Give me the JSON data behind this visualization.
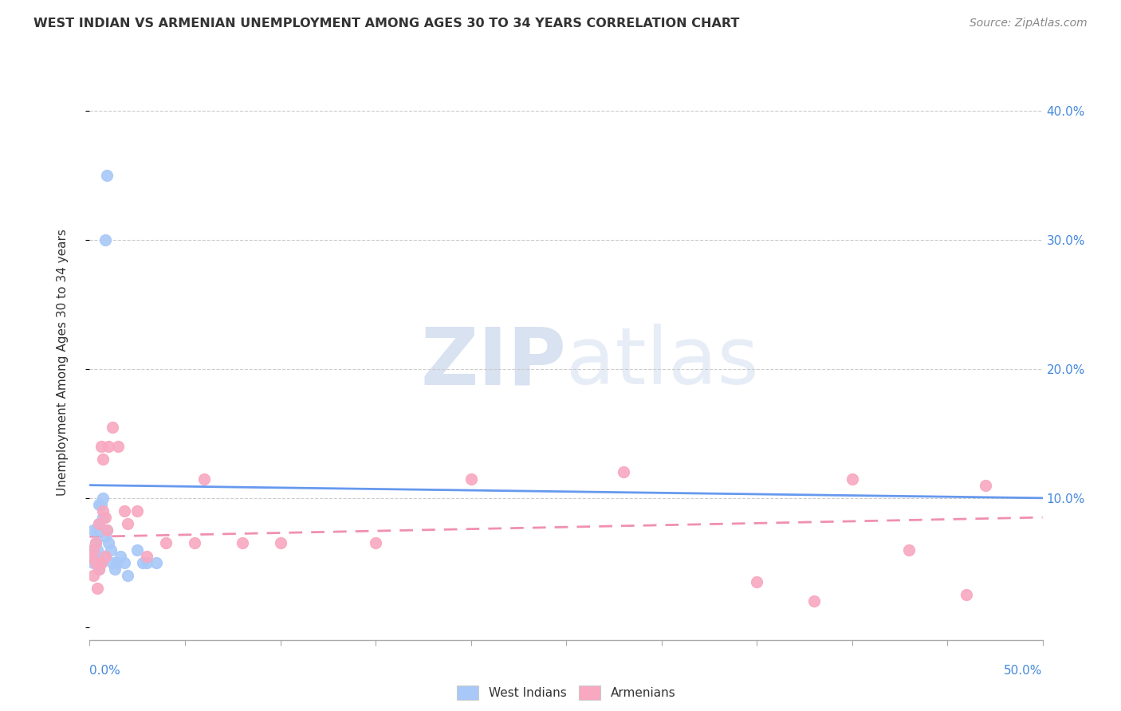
{
  "title": "WEST INDIAN VS ARMENIAN UNEMPLOYMENT AMONG AGES 30 TO 34 YEARS CORRELATION CHART",
  "source": "Source: ZipAtlas.com",
  "ylabel": "Unemployment Among Ages 30 to 34 years",
  "xlim": [
    0.0,
    0.5
  ],
  "ylim": [
    -0.01,
    0.42
  ],
  "west_indian_color": "#a8c8f8",
  "armenian_color": "#f8a8c0",
  "west_indian_line_color": "#6699ee",
  "armenian_line_color": "#f090b0",
  "watermark": "ZIPatlas",
  "wi_trend_x": [
    0.0,
    0.5
  ],
  "wi_trend_y": [
    0.11,
    0.1
  ],
  "ar_trend_x": [
    0.0,
    0.5
  ],
  "ar_trend_y": [
    0.07,
    0.085
  ],
  "wi_x": [
    0.001,
    0.002,
    0.002,
    0.003,
    0.003,
    0.004,
    0.004,
    0.005,
    0.005,
    0.005,
    0.006,
    0.006,
    0.007,
    0.007,
    0.008,
    0.008,
    0.009,
    0.01,
    0.011,
    0.012,
    0.013,
    0.014,
    0.016,
    0.018,
    0.02,
    0.025,
    0.028,
    0.03,
    0.035,
    0.008,
    0.009
  ],
  "wi_y": [
    0.06,
    0.05,
    0.075,
    0.065,
    0.055,
    0.06,
    0.075,
    0.045,
    0.08,
    0.095,
    0.05,
    0.095,
    0.085,
    0.1,
    0.055,
    0.07,
    0.075,
    0.065,
    0.06,
    0.05,
    0.045,
    0.05,
    0.055,
    0.05,
    0.04,
    0.06,
    0.05,
    0.05,
    0.05,
    0.3,
    0.35
  ],
  "ar_x": [
    0.001,
    0.002,
    0.002,
    0.003,
    0.003,
    0.004,
    0.005,
    0.005,
    0.006,
    0.006,
    0.007,
    0.007,
    0.008,
    0.008,
    0.009,
    0.01,
    0.012,
    0.015,
    0.018,
    0.02,
    0.025,
    0.03,
    0.04,
    0.055,
    0.06,
    0.08,
    0.1,
    0.15,
    0.2,
    0.28,
    0.35,
    0.38,
    0.4,
    0.43,
    0.46,
    0.47
  ],
  "ar_y": [
    0.055,
    0.04,
    0.06,
    0.05,
    0.065,
    0.03,
    0.045,
    0.08,
    0.05,
    0.14,
    0.09,
    0.13,
    0.055,
    0.085,
    0.075,
    0.14,
    0.155,
    0.14,
    0.09,
    0.08,
    0.09,
    0.055,
    0.065,
    0.065,
    0.115,
    0.065,
    0.065,
    0.065,
    0.115,
    0.12,
    0.035,
    0.02,
    0.115,
    0.06,
    0.025,
    0.11
  ]
}
